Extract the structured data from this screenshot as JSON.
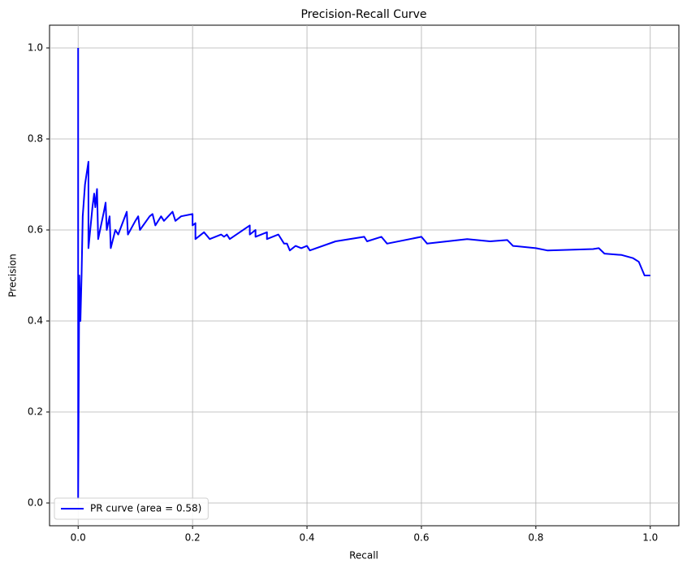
{
  "chart_data": {
    "type": "line",
    "title": "Precision-Recall Curve",
    "x_label": "Recall",
    "y_label": "Precision",
    "xlim": [
      -0.05,
      1.05
    ],
    "ylim": [
      -0.05,
      1.05
    ],
    "xticks": [
      {
        "value": 0,
        "label": "0.0"
      },
      {
        "value": 0.2,
        "label": "0.2"
      },
      {
        "value": 0.4,
        "label": "0.4"
      },
      {
        "value": 0.6,
        "label": "0.6"
      },
      {
        "value": 0.8,
        "label": "0.8"
      },
      {
        "value": 1,
        "label": "1.0"
      }
    ],
    "yticks": [
      {
        "value": 0,
        "label": "0.0"
      },
      {
        "value": 0.2,
        "label": "0.2"
      },
      {
        "value": 0.4,
        "label": "0.4"
      },
      {
        "value": 0.6,
        "label": "0.6"
      },
      {
        "value": 0.8,
        "label": "0.8"
      },
      {
        "value": 1,
        "label": "1.0"
      }
    ],
    "grid": true,
    "legend": "lower left",
    "series": [
      {
        "name": "PR curve (area = 0.58)",
        "color": "#0000ff",
        "x": [
          0,
          0,
          0.002,
          0.004,
          0.006,
          0.008,
          0.012,
          0.018,
          0.018,
          0.025,
          0.028,
          0.03,
          0.033,
          0.035,
          0.045,
          0.048,
          0.05,
          0.055,
          0.057,
          0.065,
          0.07,
          0.085,
          0.087,
          0.1,
          0.105,
          0.108,
          0.125,
          0.13,
          0.135,
          0.145,
          0.15,
          0.165,
          0.17,
          0.18,
          0.2,
          0.2,
          0.205,
          0.205,
          0.22,
          0.23,
          0.25,
          0.255,
          0.26,
          0.265,
          0.3,
          0.3,
          0.31,
          0.31,
          0.33,
          0.33,
          0.35,
          0.36,
          0.365,
          0.37,
          0.38,
          0.39,
          0.4,
          0.405,
          0.45,
          0.5,
          0.505,
          0.53,
          0.54,
          0.6,
          0.61,
          0.68,
          0.72,
          0.75,
          0.76,
          0.8,
          0.82,
          0.9,
          0.91,
          0.92,
          0.95,
          0.97,
          0.98,
          0.99,
          1.0
        ],
        "values": [
          1.0,
          0.01,
          0.5,
          0.4,
          0.5,
          0.63,
          0.7,
          0.75,
          0.56,
          0.65,
          0.68,
          0.65,
          0.69,
          0.58,
          0.64,
          0.66,
          0.6,
          0.63,
          0.56,
          0.6,
          0.59,
          0.64,
          0.59,
          0.62,
          0.63,
          0.6,
          0.63,
          0.635,
          0.61,
          0.63,
          0.62,
          0.64,
          0.62,
          0.63,
          0.635,
          0.61,
          0.615,
          0.58,
          0.595,
          0.58,
          0.59,
          0.585,
          0.59,
          0.58,
          0.61,
          0.59,
          0.6,
          0.585,
          0.595,
          0.58,
          0.59,
          0.57,
          0.57,
          0.555,
          0.565,
          0.56,
          0.565,
          0.555,
          0.575,
          0.585,
          0.575,
          0.585,
          0.57,
          0.585,
          0.57,
          0.58,
          0.575,
          0.578,
          0.565,
          0.56,
          0.555,
          0.558,
          0.56,
          0.548,
          0.545,
          0.538,
          0.53,
          0.5,
          0.5
        ]
      }
    ]
  }
}
